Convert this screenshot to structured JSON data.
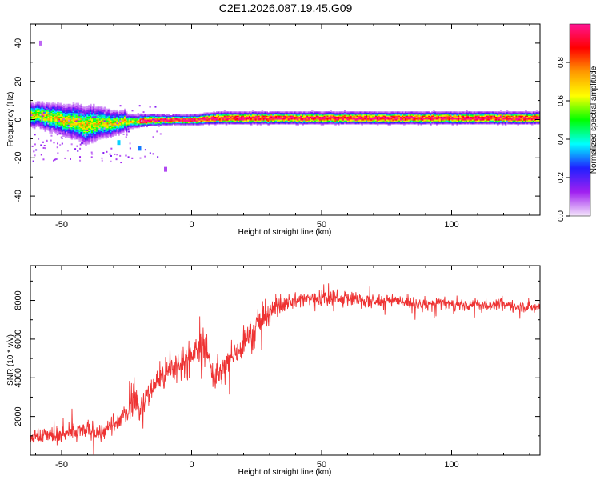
{
  "title": "C2E1.2026.087.19.45.G09",
  "chart_data": [
    {
      "type": "heatmap",
      "xlabel": "Height of straight line (km)",
      "ylabel": "Frequency (Hz)",
      "xlim": [
        -62,
        134
      ],
      "ylim": [
        -50,
        50
      ],
      "xticks": [
        -50,
        0,
        50,
        100
      ],
      "yticks": [
        -40,
        -20,
        0,
        20,
        40
      ],
      "colorbar": {
        "label": "Normalized spectral amplitude",
        "range": [
          0,
          1
        ],
        "ticks": [
          0.0,
          0.2,
          0.4,
          0.6,
          0.8
        ],
        "colors": [
          "#f4e6fb",
          "#a020f0",
          "#2020ff",
          "#00ffff",
          "#00ff00",
          "#ffff00",
          "#ff9900",
          "#ff0000",
          "#ff1493"
        ]
      },
      "ridge": [
        {
          "x": -60,
          "f": 2.5,
          "spread": 3.5
        },
        {
          "x": -50,
          "f": 0.0,
          "spread": 4.5
        },
        {
          "x": -40,
          "f": -2.5,
          "spread": 5.5
        },
        {
          "x": -30,
          "f": -1.5,
          "spread": 3.5
        },
        {
          "x": -20,
          "f": -0.5,
          "spread": 2.5
        },
        {
          "x": -10,
          "f": 0.0,
          "spread": 2.0
        },
        {
          "x": 0,
          "f": 0.0,
          "spread": 2.0
        },
        {
          "x": 10,
          "f": 1.0,
          "spread": 2.5
        },
        {
          "x": 30,
          "f": 1.0,
          "spread": 2.5
        },
        {
          "x": 60,
          "f": 1.0,
          "spread": 2.5
        },
        {
          "x": 90,
          "f": 1.0,
          "spread": 2.5
        },
        {
          "x": 134,
          "f": 1.0,
          "spread": 2.5
        }
      ]
    },
    {
      "type": "line",
      "xlabel": "Height of straight line (km)",
      "ylabel": "SNR (10 * v/v)",
      "xlim": [
        -62,
        134
      ],
      "ylim": [
        0,
        9800
      ],
      "xticks": [
        -50,
        0,
        50,
        100
      ],
      "yticks": [
        2000,
        4000,
        6000,
        8000
      ],
      "series": [
        {
          "color": "#ee3333",
          "x": [
            -62,
            -55,
            -50,
            -45,
            -40,
            -35,
            -30,
            -25,
            -22,
            -20,
            -15,
            -10,
            -5,
            0,
            3,
            5,
            8,
            10,
            15,
            20,
            25,
            30,
            35,
            40,
            45,
            50,
            55,
            60,
            65,
            70,
            75,
            80,
            85,
            90,
            95,
            100,
            105,
            110,
            115,
            120,
            125,
            130,
            134
          ],
          "y": [
            900,
            1100,
            1000,
            1200,
            1300,
            1200,
            1500,
            2200,
            3200,
            2300,
            3600,
            4200,
            4700,
            5200,
            5500,
            5800,
            4300,
            4000,
            5000,
            5800,
            6700,
            7400,
            7800,
            8000,
            8100,
            8150,
            8200,
            8100,
            8000,
            7900,
            8000,
            8000,
            7800,
            7750,
            7900,
            7800,
            7700,
            7800,
            7750,
            7800,
            7700,
            7650,
            7700
          ]
        }
      ]
    }
  ]
}
